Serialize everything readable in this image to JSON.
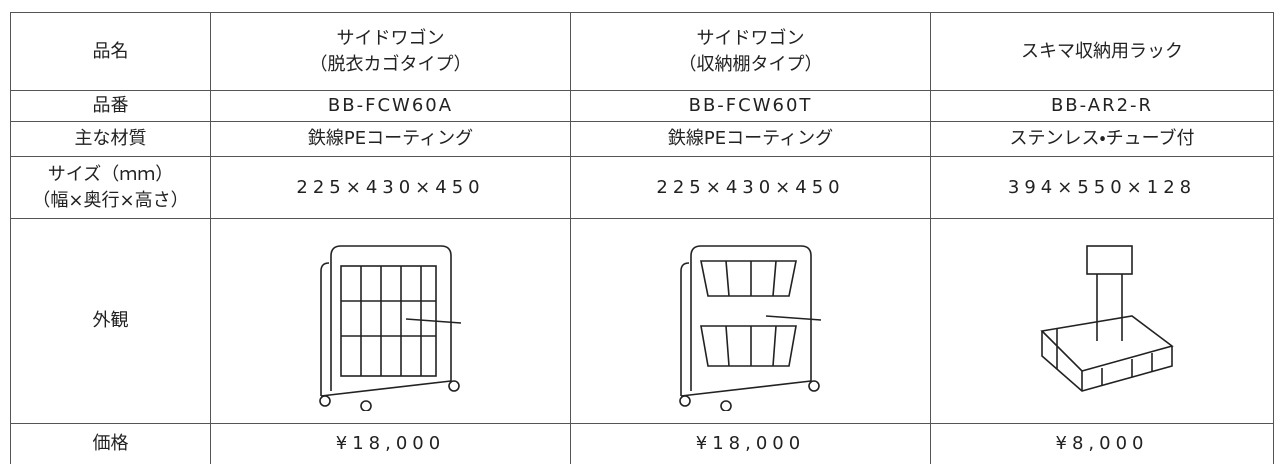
{
  "table": {
    "rows": [
      {
        "label": [
          "品名"
        ],
        "cells": [
          [
            "サイドワゴン",
            "（脱衣カゴタイプ）"
          ],
          [
            "サイドワゴン",
            "（収納棚タイプ）"
          ],
          [
            "スキマ収納用ラック"
          ]
        ]
      },
      {
        "label": [
          "品番"
        ],
        "cells": [
          [
            "BB-FCW60A"
          ],
          [
            "BB-FCW60T"
          ],
          [
            "BB-AR2-R"
          ]
        ]
      },
      {
        "label": [
          "主な材質"
        ],
        "cells": [
          [
            "鉄線PEコーティング"
          ],
          [
            "鉄線PEコーティング"
          ],
          [
            "ステンレス・チューブ付"
          ]
        ]
      },
      {
        "label": [
          "サイズ（ｍｍ）",
          "（幅×奥行×高さ）"
        ],
        "cells": [
          [
            "225×430×450"
          ],
          [
            "225×430×450"
          ],
          [
            "394×550×128"
          ]
        ]
      },
      {
        "label": [
          "外観"
        ]
      },
      {
        "label": [
          "価格"
        ],
        "cells": [
          [
            "¥18,000"
          ],
          [
            "¥18,000"
          ],
          [
            "¥8,000"
          ]
        ]
      }
    ]
  }
}
